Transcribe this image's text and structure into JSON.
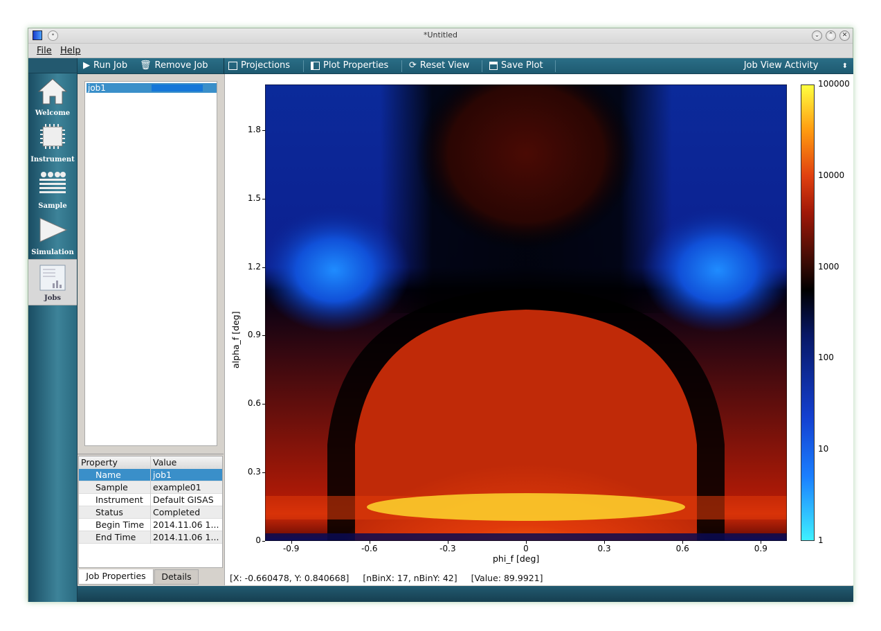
{
  "window": {
    "title": "*Untitled",
    "controls": [
      "chevron-down-icon",
      "chevron-up-icon",
      "close-icon"
    ]
  },
  "menu": {
    "file": "File",
    "help": "Help"
  },
  "sidebar": {
    "items": [
      {
        "label": "Welcome",
        "icon": "home-icon"
      },
      {
        "label": "Instrument",
        "icon": "chip-icon"
      },
      {
        "label": "Sample",
        "icon": "layers-icon"
      },
      {
        "label": "Simulation",
        "icon": "play-icon"
      },
      {
        "label": "Jobs",
        "icon": "jobs-icon"
      }
    ]
  },
  "toolbar": {
    "run_job": "Run Job",
    "remove_job": "Remove Job",
    "projections": "Projections",
    "plot_properties": "Plot Properties",
    "reset_view": "Reset View",
    "save_plot": "Save Plot",
    "activity": "Job View Activity"
  },
  "jobs": {
    "items": [
      {
        "name": "job1",
        "progress": 1.0
      }
    ]
  },
  "properties": {
    "header": {
      "property": "Property",
      "value": "Value"
    },
    "rows": [
      {
        "property": "Name",
        "value": "job1"
      },
      {
        "property": "Sample",
        "value": "example01"
      },
      {
        "property": "Instrument",
        "value": "Default GISAS"
      },
      {
        "property": "Status",
        "value": "Completed"
      },
      {
        "property": "Begin Time",
        "value": "2014.11.06 1..."
      },
      {
        "property": "End Time",
        "value": "2014.11.06 1..."
      }
    ],
    "tabs": [
      "Job Properties",
      "Details"
    ]
  },
  "status_bar": {
    "coords": "[X: -0.660478, Y: 0.840668]",
    "bins": "[nBinX: 17, nBinY: 42]",
    "value": "[Value: 89.9921]"
  },
  "chart_data": {
    "type": "heatmap",
    "xlabel": "phi_f [deg]",
    "ylabel": "alpha_f [deg]",
    "xlim": [
      -1.0,
      1.0
    ],
    "ylim": [
      0,
      2.0
    ],
    "x_ticks": [
      "-0.9",
      "-0.6",
      "-0.3",
      "0",
      "0.3",
      "0.6",
      "0.9"
    ],
    "y_ticks": [
      "0",
      "0.3",
      "0.6",
      "0.9",
      "1.2",
      "1.5",
      "1.8"
    ],
    "colorbar": {
      "scale": "log",
      "range": [
        1,
        100000
      ],
      "ticks": [
        "100000",
        "10000",
        "1000",
        "100",
        "10",
        "1"
      ]
    },
    "colors": [
      "#3ff0ff",
      "#1a7fff",
      "#081866",
      "#000000",
      "#a01808",
      "#ff9a10",
      "#ffff40"
    ]
  }
}
